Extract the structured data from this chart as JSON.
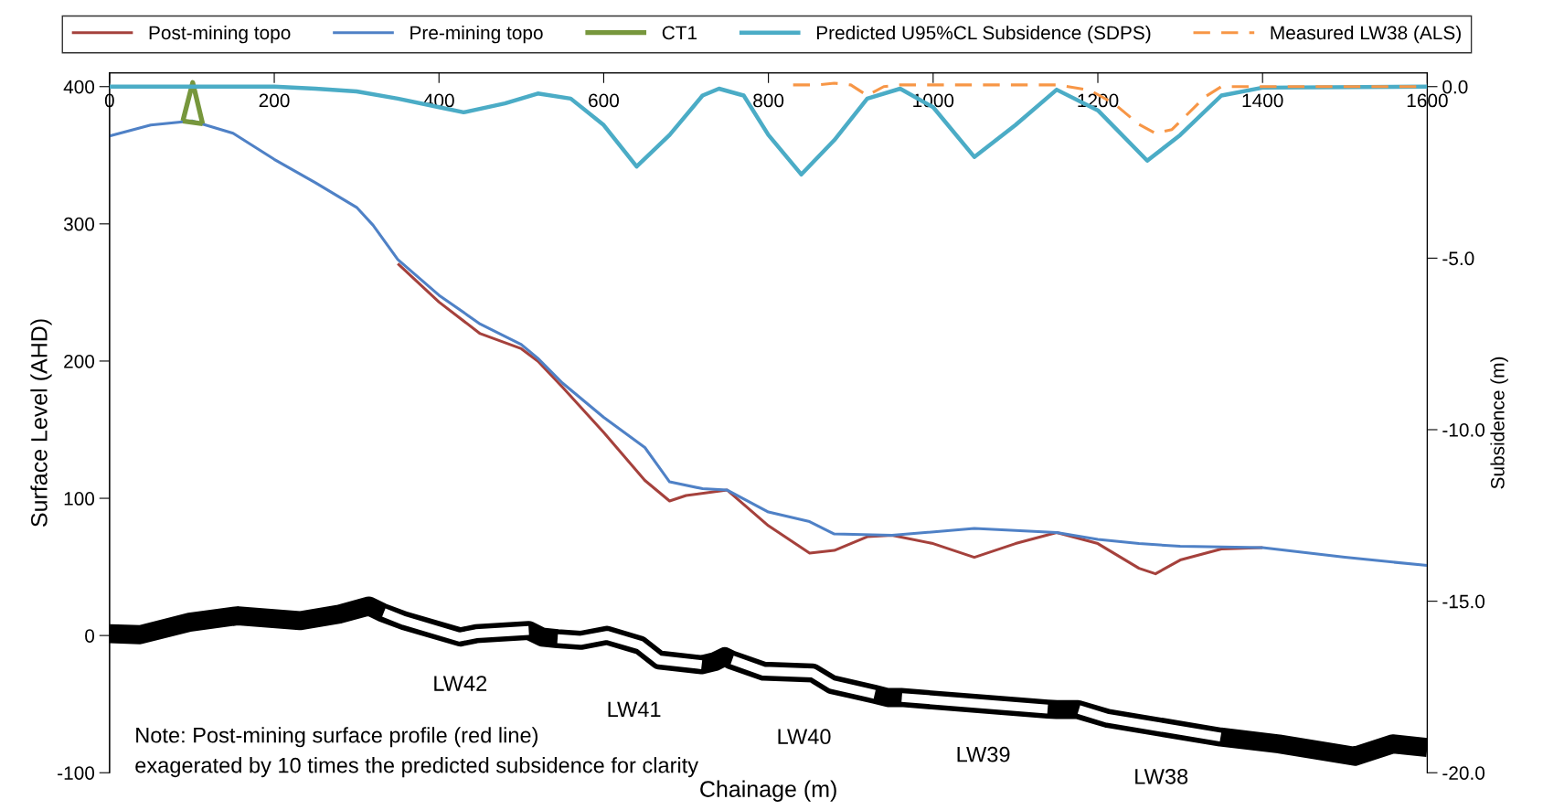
{
  "chart_data": {
    "type": "line",
    "xlabel": "Chainage (m)",
    "ylabel": "Surface Level (AHD)",
    "y2label": "Subsidence (m)",
    "xlim": [
      0,
      1600
    ],
    "xticks": [
      0,
      200,
      400,
      600,
      800,
      1000,
      1200,
      1400,
      1600
    ],
    "ylim": [
      -100,
      410
    ],
    "yticks": [
      -100,
      0,
      100,
      200,
      300,
      400
    ],
    "y2lim": [
      -20,
      0.4
    ],
    "y2ticks": [
      {
        "value": -20,
        "label": "-20.0"
      },
      {
        "value": -15,
        "label": "-15.0"
      },
      {
        "value": -10,
        "label": "-10.0"
      },
      {
        "value": -5,
        "label": "-5.0"
      },
      {
        "value": 0,
        "label": "0.0"
      }
    ],
    "grid": false,
    "legend": "top",
    "marker": "none",
    "series": [
      {
        "name": "Post-mining topo",
        "color": "#a5413c",
        "line_style": "solid",
        "x": [
          350,
          400,
          450,
          500,
          520,
          550,
          600,
          650,
          680,
          700,
          750,
          800,
          850,
          880,
          920,
          950,
          1000,
          1050,
          1100,
          1150,
          1200,
          1250,
          1270,
          1300,
          1350,
          1400
        ],
        "values": [
          271,
          243,
          220,
          209,
          200,
          181,
          148,
          113,
          98,
          102,
          106,
          80,
          60,
          62,
          72,
          73,
          67,
          57,
          67,
          75,
          67,
          49,
          45,
          55,
          63,
          64
        ]
      },
      {
        "name": "Pre-mining topo",
        "color": "#4f81c6",
        "line_style": "solid",
        "x": [
          0,
          50,
          100,
          150,
          200,
          250,
          300,
          320,
          350,
          400,
          450,
          500,
          520,
          550,
          600,
          650,
          680,
          720,
          750,
          800,
          850,
          880,
          950,
          1050,
          1150,
          1200,
          1250,
          1300,
          1400,
          1500,
          1600
        ],
        "values": [
          364,
          372,
          375,
          366,
          347,
          330,
          312,
          299,
          274,
          248,
          227,
          212,
          202,
          184,
          159,
          137,
          112,
          107,
          106,
          90,
          83,
          74,
          73,
          78,
          75,
          70,
          67,
          65,
          64,
          57,
          51
        ]
      },
      {
        "name": "CT1",
        "color": "#77973d",
        "line_style": "solid",
        "x": [
          89,
          101,
          113
        ],
        "values": [
          375,
          403,
          373
        ]
      },
      {
        "color": "#77973d",
        "line_style": "solid",
        "x": [
          89,
          113
        ],
        "values": [
          375,
          373
        ]
      },
      {
        "name": "Predicted U95%CL Subsidence (SDPS)",
        "color": "#4bacc6",
        "line_style": "solid",
        "axis": "y2",
        "x": [
          0,
          200,
          250,
          300,
          350,
          400,
          430,
          480,
          520,
          560,
          600,
          640,
          680,
          720,
          740,
          770,
          800,
          840,
          880,
          920,
          960,
          1000,
          1050,
          1100,
          1150,
          1200,
          1260,
          1300,
          1350,
          1400,
          1600
        ],
        "values": [
          0,
          0,
          -0.06,
          -0.14,
          -0.35,
          -0.6,
          -0.75,
          -0.49,
          -0.2,
          -0.35,
          -1.12,
          -2.33,
          -1.41,
          -0.26,
          -0.06,
          -0.26,
          -1.41,
          -2.56,
          -1.56,
          -0.35,
          -0.06,
          -0.6,
          -2.05,
          -1.12,
          -0.09,
          -0.69,
          -2.16,
          -1.41,
          -0.26,
          -0.03,
          0
        ]
      },
      {
        "name": "Measured LW38 (ALS)",
        "color": "#f79646",
        "line_style": "dashed",
        "axis": "y2",
        "x": [
          830,
          860,
          880,
          900,
          920,
          940,
          960,
          1000,
          1100,
          1150,
          1190,
          1220,
          1250,
          1270,
          1290,
          1330,
          1350,
          1400,
          1600
        ],
        "values": [
          0.05,
          0.05,
          0.1,
          0.05,
          -0.26,
          0.0,
          0.05,
          0.05,
          0.05,
          0.05,
          -0.1,
          -0.5,
          -1.1,
          -1.36,
          -1.25,
          -0.3,
          0.0,
          0.0,
          0.0
        ]
      },
      {
        "color": "#000000",
        "line_style": "solid",
        "x": [
          0,
          37,
          97,
          156,
          231,
          279,
          315,
          331,
          358,
          426,
          445,
          509,
          525,
          544,
          572,
          604,
          644,
          667,
          719,
          735,
          747,
          755,
          794,
          854,
          877,
          929,
          945,
          961,
          1139,
          1150,
          1176,
          1212,
          1349,
          1420,
          1512,
          1558,
          1600
        ],
        "values": [
          1.3,
          0.6,
          9.7,
          14.4,
          10.8,
          15.6,
          21.5,
          16.8,
          10.8,
          -1.1,
          1.3,
          3.7,
          -1.1,
          -2.3,
          -3.5,
          0.1,
          -7,
          -17.8,
          -21.3,
          -19,
          -15.4,
          -17.8,
          -26,
          -27.3,
          -35.7,
          -42.8,
          -45.2,
          -45.2,
          -53.6,
          -54,
          -54,
          -60.4,
          -74,
          -79,
          -88,
          -79,
          -81.6
        ]
      },
      {
        "color": "#ffffff",
        "line_style": "solid",
        "x": [
          333,
          358,
          425,
          445,
          509
        ],
        "values": [
          16.8,
          10.8,
          -1.1,
          1.3,
          3.7
        ]
      },
      {
        "color": "#ffffff",
        "line_style": "solid",
        "x": [
          544,
          572,
          604,
          644,
          667,
          719
        ],
        "values": [
          -2.3,
          -3.5,
          0.1,
          -7,
          -17.8,
          -21.3
        ]
      },
      {
        "color": "#ffffff",
        "line_style": "solid",
        "x": [
          756,
          794,
          854,
          877,
          929
        ],
        "values": [
          -17.8,
          -26,
          -27.3,
          -35.7,
          -42.8
        ]
      },
      {
        "color": "#ffffff",
        "line_style": "solid",
        "x": [
          962,
          1139
        ],
        "values": [
          -45.2,
          -53.6
        ]
      },
      {
        "color": "#ffffff",
        "line_style": "solid",
        "x": [
          1177,
          1212,
          1349
        ],
        "values": [
          -54,
          -60.4,
          -74
        ]
      }
    ],
    "annotations": [
      "LW42",
      "LW41",
      "LW40",
      "LW39",
      "LW38",
      "Note: Post-mining surface profile (red line)",
      "exagerated by 10 times the predicted subsidence for clarity"
    ]
  }
}
